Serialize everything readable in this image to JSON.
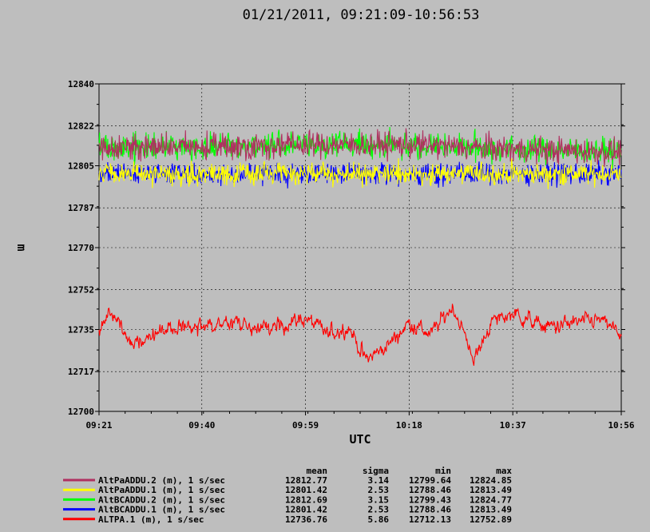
{
  "chart_data": {
    "type": "line",
    "title": "01/21/2011, 09:21:09-10:56:53",
    "xlabel": "UTC",
    "ylabel": "m",
    "x_ticks": [
      "09:21",
      "09:40",
      "09:59",
      "10:18",
      "10:37",
      "10:56"
    ],
    "y_ticks": [
      "12700",
      "12717",
      "12735",
      "12752",
      "12770",
      "12787",
      "12805",
      "12822",
      "12840"
    ],
    "xlim": [
      "09:21:09",
      "10:56:53"
    ],
    "ylim": [
      12700,
      12840
    ],
    "grid": true,
    "legend": {
      "position": "bottom",
      "stat_headers": [
        "mean",
        "sigma",
        "min",
        "max"
      ],
      "entries": [
        {
          "label": "AltPaADDU.2 (m), 1 s/sec",
          "color": "#b03060",
          "mean": "12812.77",
          "sigma": "3.14",
          "min": "12799.64",
          "max": "12824.85"
        },
        {
          "label": "AltPaADDU.1 (m), 1 s/sec",
          "color": "#ffff00",
          "mean": "12801.42",
          "sigma": "2.53",
          "min": "12788.46",
          "max": "12813.49"
        },
        {
          "label": "AltBCADDU.2 (m), 1 s/sec",
          "color": "#00ff00",
          "mean": "12812.69",
          "sigma": "3.15",
          "min": "12799.43",
          "max": "12824.77"
        },
        {
          "label": "AltBCADDU.1 (m), 1 s/sec",
          "color": "#0000ff",
          "mean": "12801.42",
          "sigma": "2.53",
          "min": "12788.46",
          "max": "12813.49"
        },
        {
          "label": "ALTPA.1 (m), 1 s/sec",
          "color": "#ff0000",
          "mean": "12736.76",
          "sigma": "5.86",
          "min": "12712.13",
          "max": "12752.89"
        }
      ]
    },
    "series": [
      {
        "name": "AltPaADDU.2 (m), 1 s/sec",
        "color": "#b03060",
        "x": [
          "09:21",
          "09:40",
          "09:59",
          "10:18",
          "10:37",
          "10:56"
        ],
        "y": [
          12813,
          12813,
          12814,
          12814,
          12812,
          12811
        ],
        "noise": 3.14,
        "min": 12799.64,
        "max": 12824.85
      },
      {
        "name": "AltPaADDU.1 (m), 1 s/sec",
        "color": "#ffff00",
        "x": [
          "09:21",
          "09:40",
          "09:59",
          "10:18",
          "10:37",
          "10:56"
        ],
        "y": [
          12801.5,
          12801.5,
          12801.5,
          12801.5,
          12801.5,
          12801.5
        ],
        "noise": 2.53,
        "min": 12788.46,
        "max": 12813.49
      },
      {
        "name": "AltBCADDU.2 (m), 1 s/sec",
        "color": "#00ff00",
        "x": [
          "09:21",
          "09:40",
          "09:59",
          "10:18",
          "10:37",
          "10:56"
        ],
        "y": [
          12813,
          12813,
          12814,
          12814,
          12812,
          12811
        ],
        "noise": 3.15,
        "min": 12799.43,
        "max": 12824.77
      },
      {
        "name": "AltBCADDU.1 (m), 1 s/sec",
        "color": "#0000ff",
        "x": [
          "09:21",
          "09:40",
          "09:59",
          "10:18",
          "10:37",
          "10:56"
        ],
        "y": [
          12801.5,
          12801.5,
          12801.5,
          12801.5,
          12801.5,
          12801.5
        ],
        "noise": 2.53,
        "min": 12788.46,
        "max": 12813.49
      },
      {
        "name": "ALTPA.1 (m), 1 s/sec",
        "color": "#ff0000",
        "x": [
          "09:21",
          "09:24",
          "09:27",
          "09:33",
          "09:40",
          "09:46",
          "09:52",
          "09:59",
          "10:03",
          "10:07",
          "10:10",
          "10:14",
          "10:18",
          "10:22",
          "10:26",
          "10:30",
          "10:33",
          "10:37",
          "10:43",
          "10:49",
          "10:53",
          "10:56"
        ],
        "y": [
          12735,
          12742,
          12729,
          12735,
          12736,
          12738,
          12735,
          12740,
          12733,
          12736,
          12722,
          12728,
          12738,
          12733,
          12745,
          12722,
          12738,
          12742,
          12736,
          12738,
          12739,
          12733
        ],
        "noise": 2.5,
        "min": 12712.13,
        "max": 12752.89
      }
    ]
  }
}
